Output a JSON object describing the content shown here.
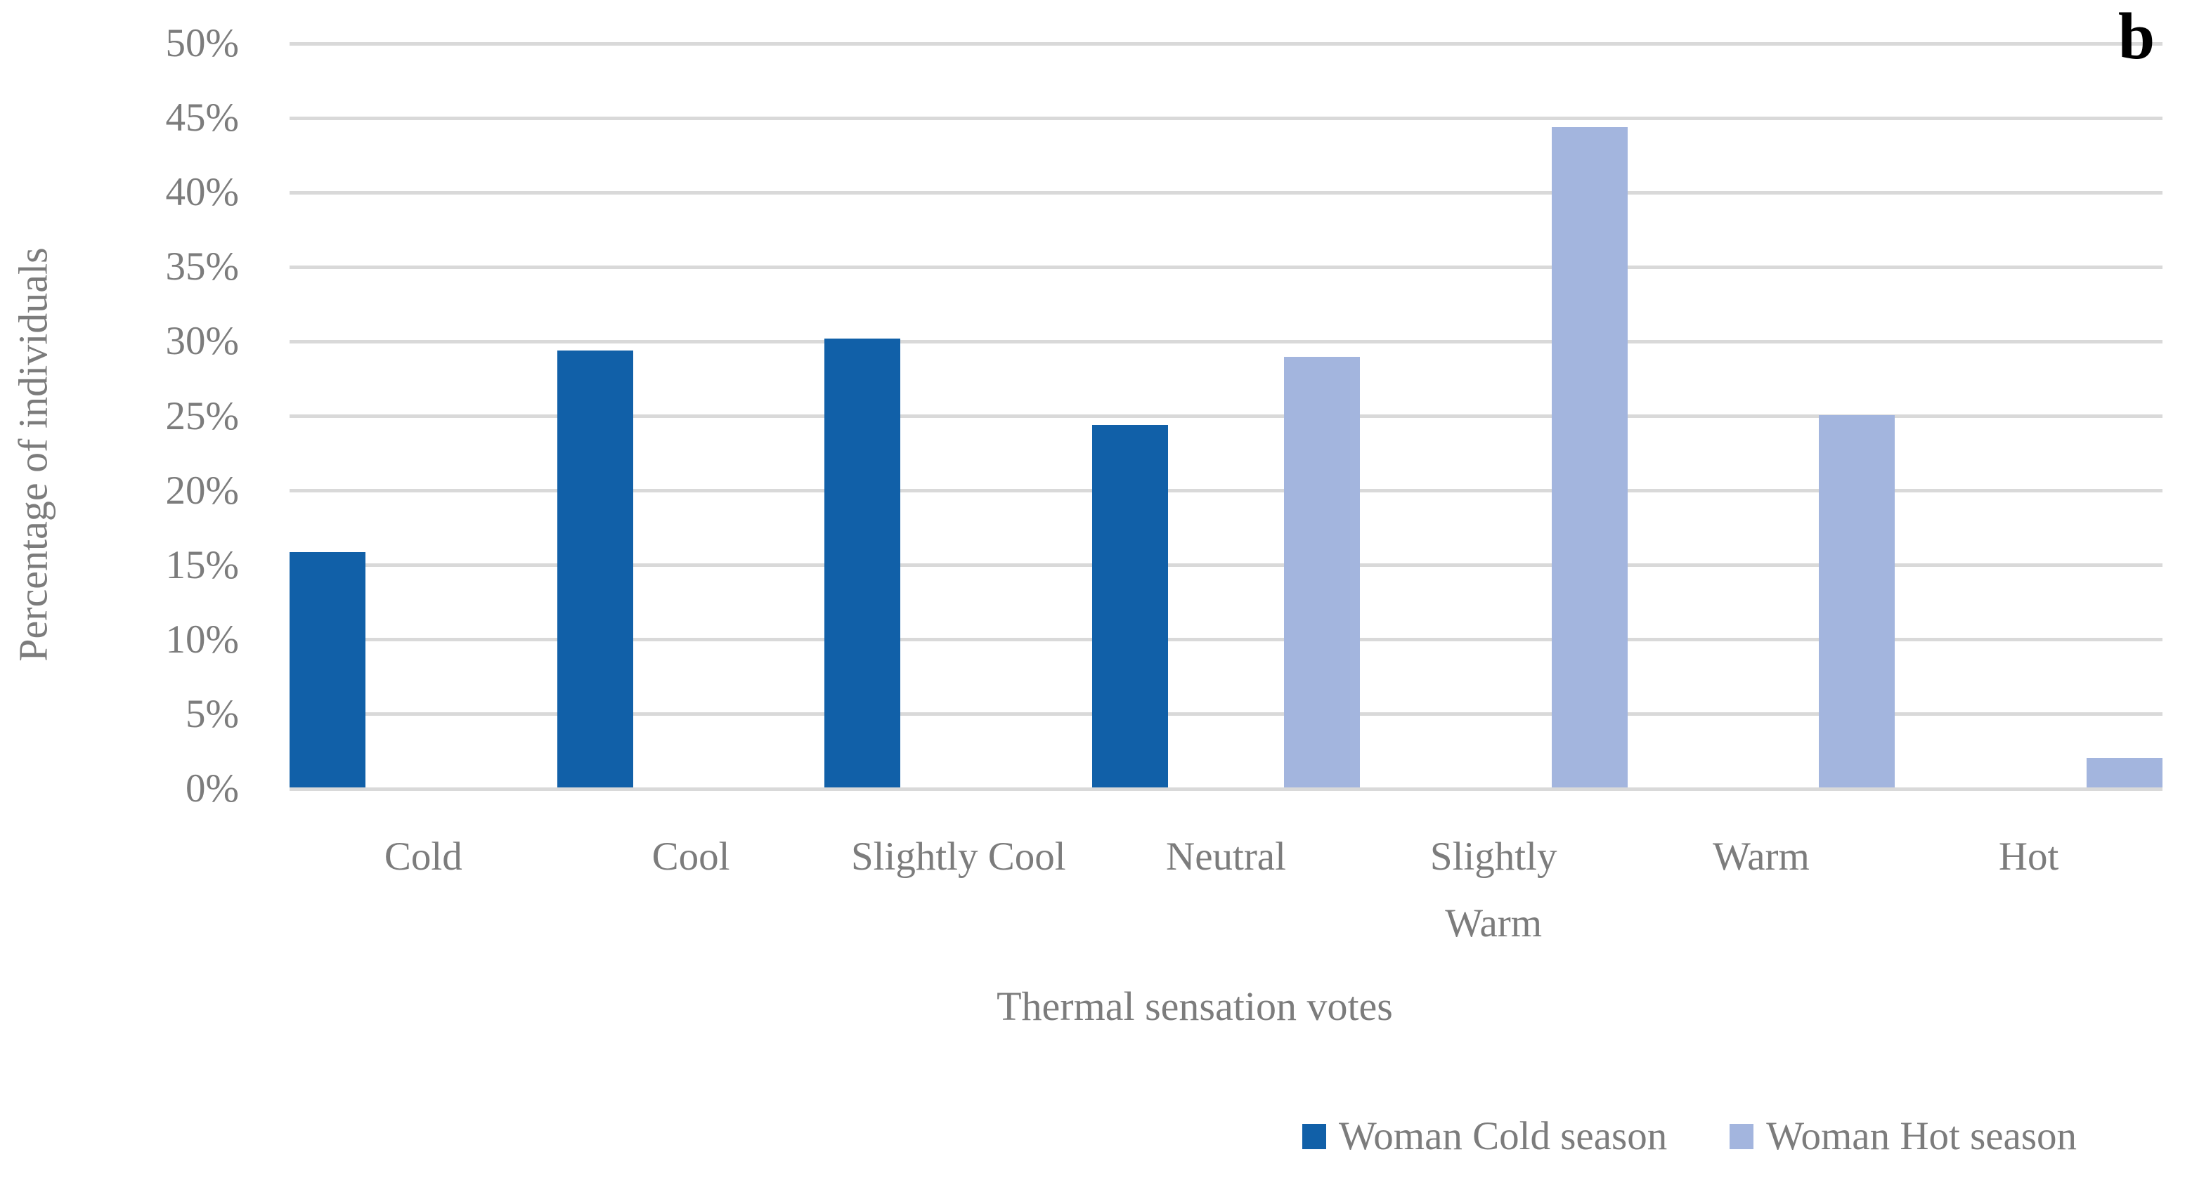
{
  "chart_data": {
    "type": "bar",
    "panel_label": "b",
    "x_axis_title": "Thermal sensation votes",
    "y_axis_title": "Percentage of individuals",
    "categories": [
      "Cold",
      "Cool",
      "Slightly Cool",
      "Neutral",
      "Slightly Warm",
      "Warm",
      "Hot"
    ],
    "series": [
      {
        "name": "Woman Cold season",
        "color": "#1160A8",
        "values": [
          15.8,
          29.3,
          30.1,
          24.3,
          0,
          0,
          0
        ]
      },
      {
        "name": "Woman Hot season",
        "color": "#A3B5DE",
        "values": [
          0,
          0,
          0,
          28.9,
          44.3,
          25.0,
          2.0
        ]
      }
    ],
    "ylim": [
      0,
      50
    ],
    "y_ticks": {
      "values": [
        0,
        5,
        10,
        15,
        20,
        25,
        30,
        35,
        40,
        45,
        50
      ],
      "labels": [
        "0%",
        "5%",
        "10%",
        "15%",
        "20%",
        "25%",
        "30%",
        "35%",
        "40%",
        "45%",
        "50%"
      ]
    },
    "grid": true,
    "legend_position": "bottom-right",
    "unit": "%"
  },
  "colors": {
    "gridline": "#D9D9D9",
    "axis_text": "#7C7C7C",
    "panel_label_text": "#000000",
    "background": "#FFFFFF"
  }
}
